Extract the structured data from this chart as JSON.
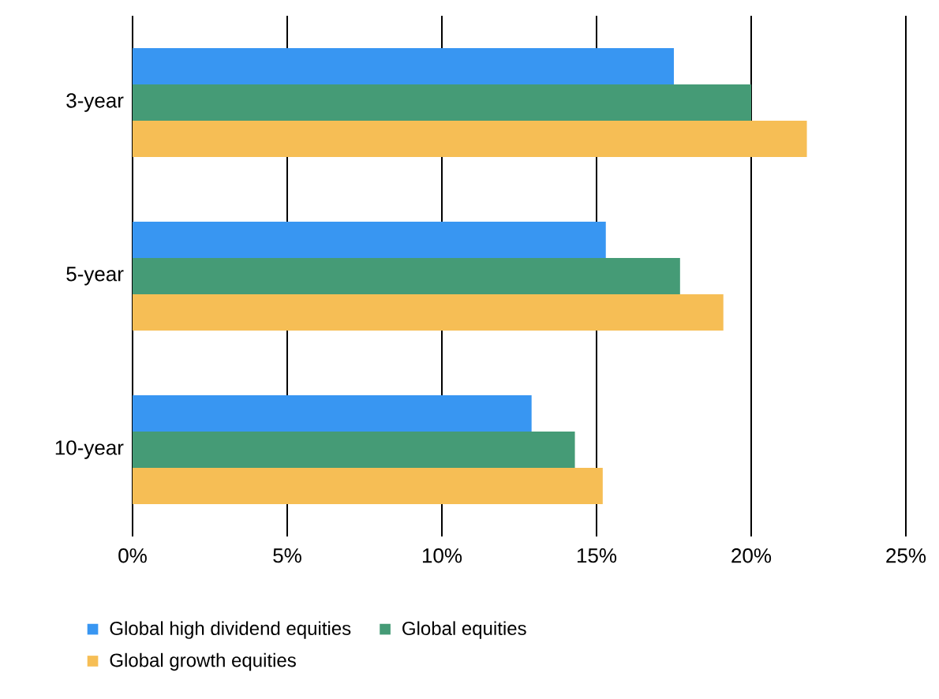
{
  "chart_data": {
    "type": "bar",
    "orientation": "horizontal",
    "categories": [
      "3-year",
      "5-year",
      "10-year"
    ],
    "series": [
      {
        "name": "Global high dividend equities",
        "color": "#3896f2",
        "values": [
          17.5,
          15.3,
          12.9
        ]
      },
      {
        "name": "Global equities",
        "color": "#459b76",
        "values": [
          20.0,
          17.7,
          14.3
        ]
      },
      {
        "name": "Global growth equities",
        "color": "#f6be55",
        "values": [
          21.8,
          19.1,
          15.2
        ]
      }
    ],
    "xlim": [
      0,
      25
    ],
    "xticks": [
      {
        "value": 0,
        "label": "0%"
      },
      {
        "value": 5,
        "label": "5%"
      },
      {
        "value": 10,
        "label": "10%"
      },
      {
        "value": 15,
        "label": "15%"
      },
      {
        "value": 20,
        "label": "20%"
      },
      {
        "value": 25,
        "label": "25%"
      }
    ],
    "grid": "x",
    "legend": "bottom"
  }
}
